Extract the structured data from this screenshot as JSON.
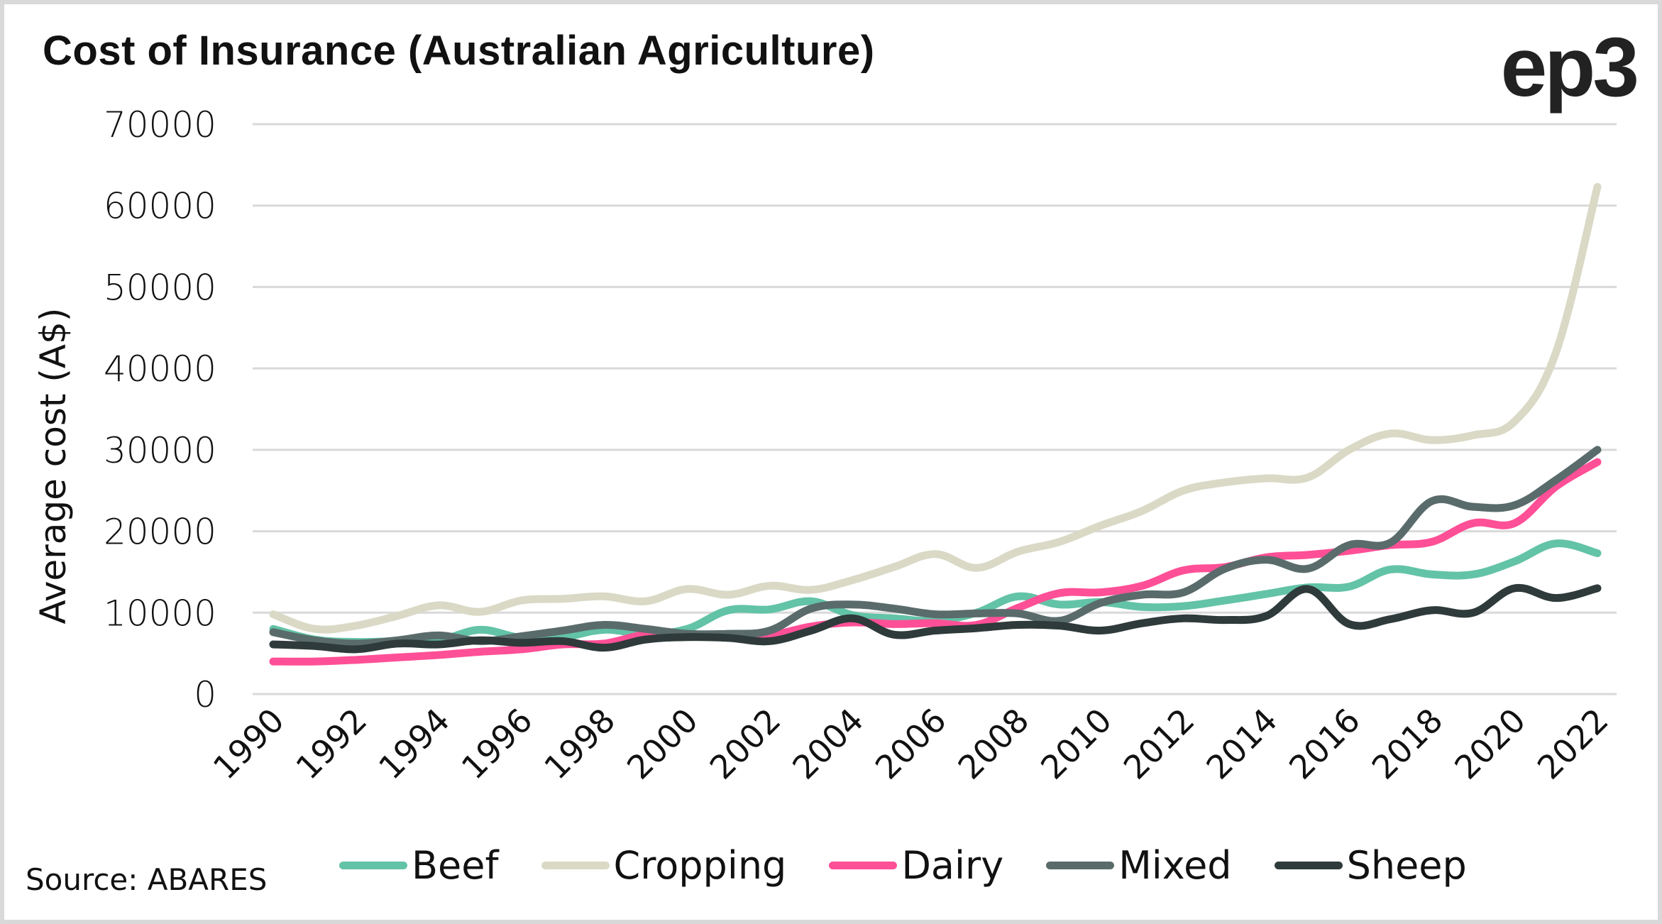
{
  "header": {
    "title": "Cost of Insurance (Australian Agriculture)",
    "logo": "ep3"
  },
  "source": "Source: ABARES",
  "chart_data": {
    "type": "line",
    "title": "Cost of Insurance (Australian Agriculture)",
    "xlabel": "",
    "ylabel": "Average cost (A$)",
    "ylim": [
      0,
      70000
    ],
    "yticks": [
      0,
      10000,
      20000,
      30000,
      40000,
      50000,
      60000,
      70000
    ],
    "ytick_labels": [
      "0",
      "10000",
      "20000",
      "30000",
      "40000",
      "50000",
      "60000",
      "70000"
    ],
    "x": [
      1990,
      1991,
      1992,
      1993,
      1994,
      1995,
      1996,
      1997,
      1998,
      1999,
      2000,
      2001,
      2002,
      2003,
      2004,
      2005,
      2006,
      2007,
      2008,
      2009,
      2010,
      2011,
      2012,
      2013,
      2014,
      2015,
      2016,
      2017,
      2018,
      2019,
      2020,
      2021,
      2022
    ],
    "xtick_labels": [
      "1990",
      "1992",
      "1994",
      "1996",
      "1998",
      "2000",
      "2002",
      "2004",
      "2006",
      "2008",
      "2010",
      "2012",
      "2014",
      "2016",
      "2018",
      "2020",
      "2022"
    ],
    "grid": true,
    "legend_position": "bottom",
    "series": [
      {
        "name": "Beef",
        "color": "#63c3a6",
        "values": [
          8000,
          6700,
          6400,
          6500,
          6600,
          7900,
          6900,
          7000,
          7900,
          7400,
          8000,
          10300,
          10400,
          11400,
          9700,
          9300,
          9000,
          10000,
          12000,
          11000,
          11300,
          10700,
          10800,
          11500,
          12300,
          13100,
          13200,
          15300,
          14700,
          14700,
          16300,
          18500,
          17300
        ]
      },
      {
        "name": "Cropping",
        "color": "#d9d9c6",
        "values": [
          9800,
          8000,
          8400,
          9600,
          10900,
          10100,
          11500,
          11700,
          12000,
          11400,
          12900,
          12200,
          13300,
          12800,
          14000,
          15600,
          17200,
          15500,
          17500,
          18700,
          20700,
          22500,
          25000,
          26000,
          26500,
          26600,
          30000,
          32000,
          31200,
          31800,
          33500,
          42000,
          62300
        ]
      },
      {
        "name": "Dairy",
        "color": "#ff4f96",
        "values": [
          4000,
          4000,
          4200,
          4500,
          4800,
          5200,
          5500,
          6100,
          6200,
          7300,
          7200,
          7000,
          7200,
          8300,
          8800,
          8600,
          8700,
          8500,
          10600,
          12400,
          12500,
          13300,
          15200,
          15600,
          16800,
          17100,
          17600,
          18300,
          18700,
          21000,
          21000,
          25500,
          28500
        ]
      },
      {
        "name": "Mixed",
        "color": "#5a6b6b",
        "values": [
          7600,
          6600,
          6200,
          6600,
          7200,
          6500,
          7100,
          7800,
          8500,
          8000,
          7400,
          7400,
          7800,
          10500,
          11000,
          10500,
          9800,
          9900,
          9900,
          9000,
          11200,
          12200,
          12500,
          15400,
          16500,
          15400,
          18300,
          18600,
          23700,
          23000,
          23200,
          26300,
          30000
        ]
      },
      {
        "name": "Sheep",
        "color": "#2f3a3a",
        "values": [
          6100,
          5900,
          5500,
          6200,
          6100,
          6600,
          6300,
          6500,
          5700,
          6700,
          7000,
          6900,
          6500,
          7800,
          9300,
          7300,
          7800,
          8100,
          8500,
          8400,
          7800,
          8700,
          9300,
          9100,
          9600,
          12900,
          8600,
          9200,
          10300,
          10000,
          13000,
          11800,
          13000
        ]
      }
    ]
  }
}
